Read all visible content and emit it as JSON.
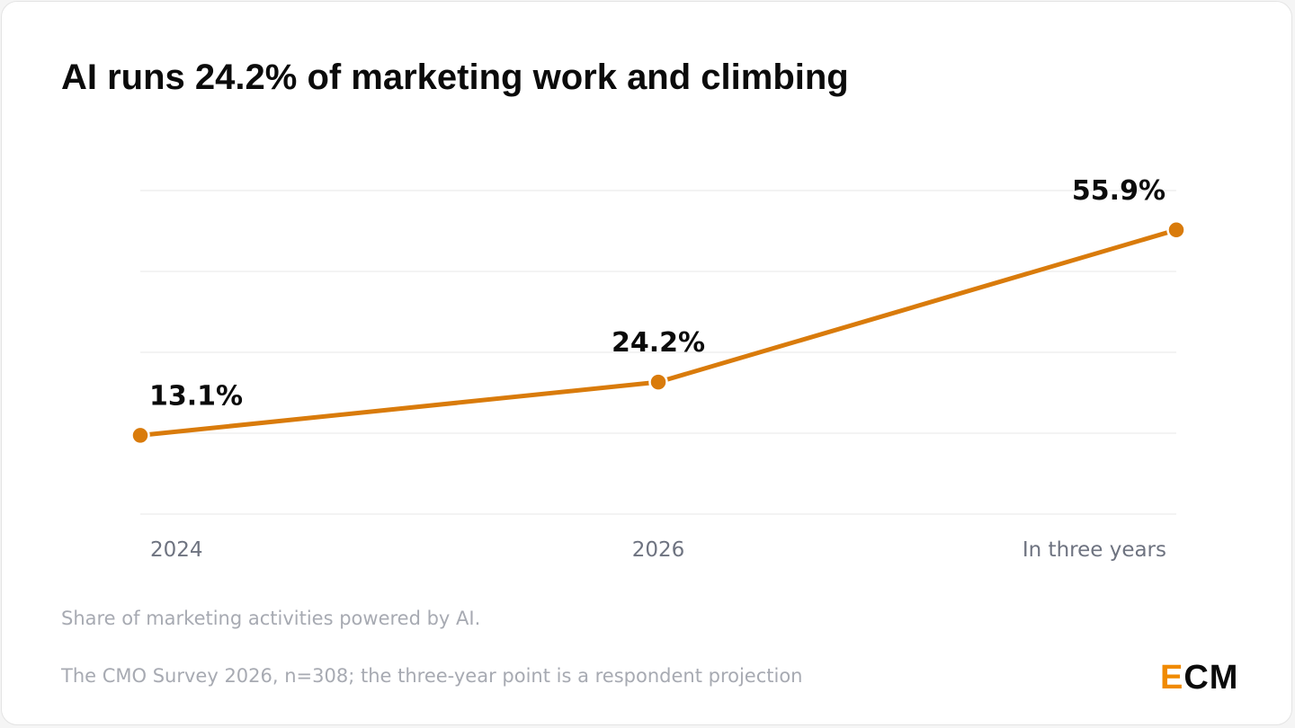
{
  "title": "AI runs 24.2% of marketing work and climbing",
  "subtitle": "Share of marketing activities powered by AI.",
  "source": "The CMO Survey 2026, n=308; the three-year point is a respondent projection",
  "logo": {
    "first_letter": "E",
    "rest": "CM",
    "accent_color": "#f08a00",
    "text_color": "#0b0b0b"
  },
  "colors": {
    "line": "#d97b0b",
    "grid": "#ececec",
    "tick_text": "#6e7380"
  },
  "chart_data": {
    "type": "line",
    "categories": [
      "2024",
      "2026",
      "In three years"
    ],
    "values": [
      13.1,
      24.2,
      55.9
    ],
    "data_labels": [
      "13.1%",
      "24.2%",
      "55.9%"
    ],
    "unit": "%",
    "ylim": [
      -3.3,
      64.1
    ],
    "grid": true,
    "legend": "none",
    "xlabel": "",
    "ylabel": ""
  }
}
